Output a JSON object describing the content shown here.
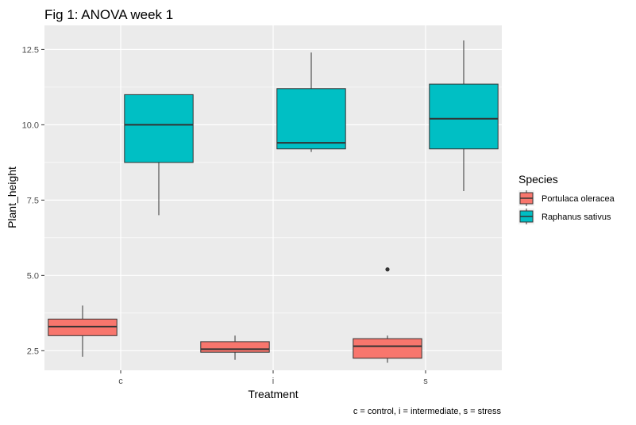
{
  "chart_data": {
    "type": "boxplot",
    "title": "Fig 1: ANOVA week 1",
    "xlabel": "Treatment",
    "ylabel": "Plant_height",
    "caption": "c = control, i = intermediate, s = stress",
    "categories": [
      "c",
      "i",
      "s"
    ],
    "ylim": [
      1.85,
      13.3
    ],
    "yticks": [
      2.5,
      5.0,
      7.5,
      10.0,
      12.5
    ],
    "ytick_labels": [
      "2.5",
      "5.0",
      "7.5",
      "10.0",
      "12.5"
    ],
    "grid": true,
    "legend": {
      "title": "Species",
      "position": "right"
    },
    "series": [
      {
        "name": "Portulaca oleracea",
        "color": "#F8766D",
        "boxes": [
          {
            "category": "c",
            "min": 2.3,
            "q1": 3.0,
            "median": 3.3,
            "q3": 3.55,
            "max": 4.0,
            "outliers": []
          },
          {
            "category": "i",
            "min": 2.2,
            "q1": 2.45,
            "median": 2.55,
            "q3": 2.8,
            "max": 3.0,
            "outliers": []
          },
          {
            "category": "s",
            "min": 2.1,
            "q1": 2.25,
            "median": 2.65,
            "q3": 2.9,
            "max": 3.0,
            "outliers": [
              5.2
            ]
          }
        ]
      },
      {
        "name": "Raphanus sativus",
        "color": "#00BFC4",
        "boxes": [
          {
            "category": "c",
            "min": 7.0,
            "q1": 8.75,
            "median": 10.0,
            "q3": 11.0,
            "max": 11.0,
            "outliers": []
          },
          {
            "category": "i",
            "min": 9.1,
            "q1": 9.2,
            "median": 9.4,
            "q3": 11.2,
            "max": 12.4,
            "outliers": []
          },
          {
            "category": "s",
            "min": 7.8,
            "q1": 9.2,
            "median": 10.2,
            "q3": 11.35,
            "max": 12.8,
            "outliers": []
          }
        ]
      }
    ]
  }
}
